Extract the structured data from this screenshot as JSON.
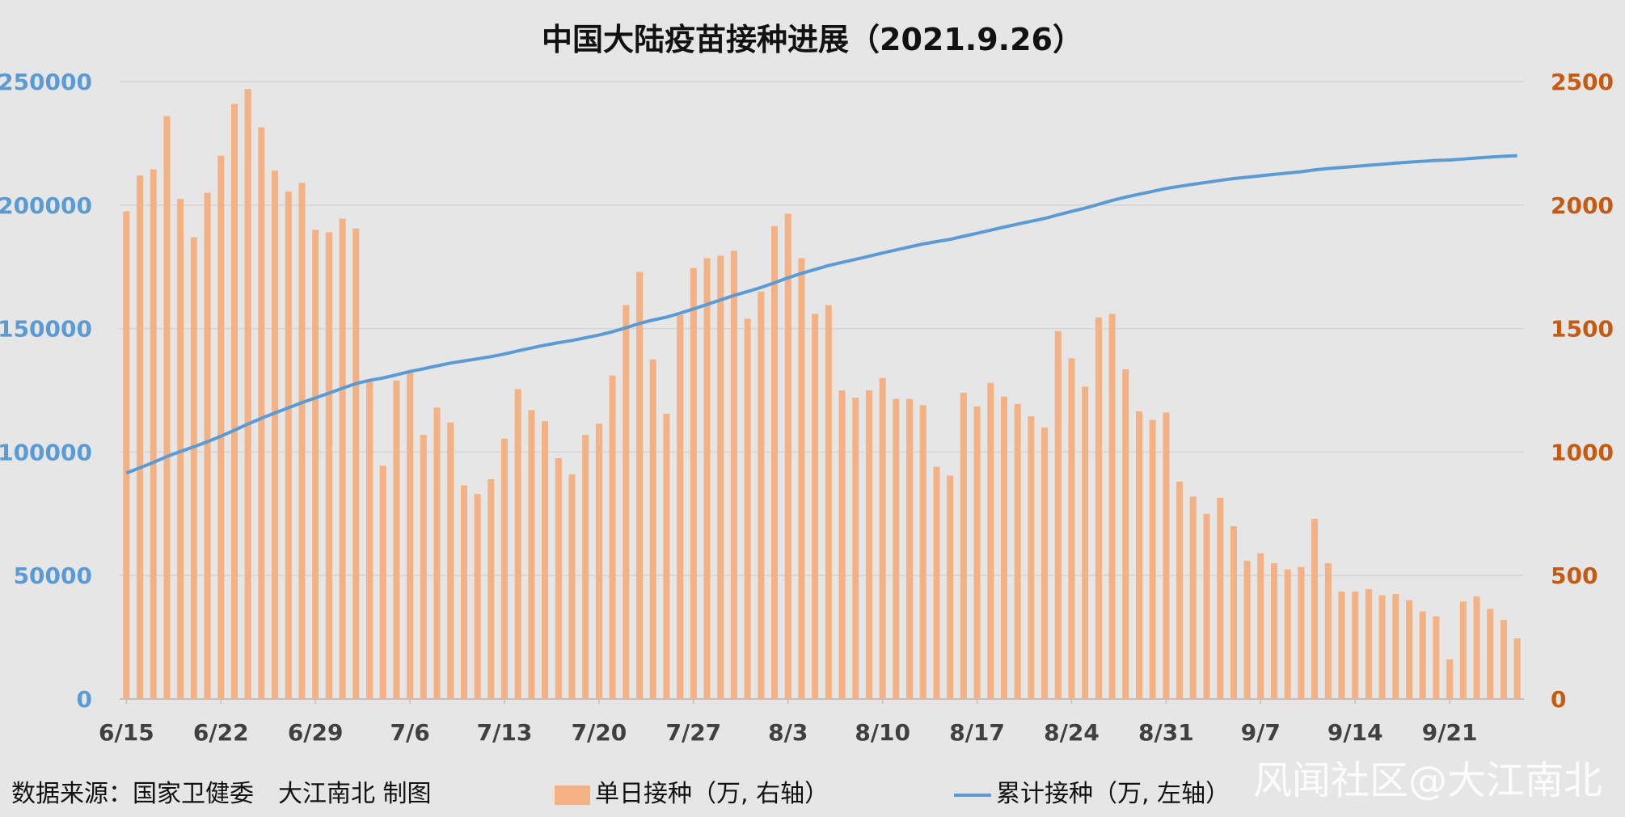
{
  "chart_data": {
    "type": "bar+line",
    "title": "中国大陆疫苗接种进展（2021.9.26）",
    "x_tick_labels": [
      "6/15",
      "6/22",
      "6/29",
      "7/6",
      "7/13",
      "7/20",
      "7/27",
      "8/3",
      "8/10",
      "8/17",
      "8/24",
      "8/31",
      "9/7",
      "9/14",
      "9/21"
    ],
    "x_dates_start": "6/15",
    "x_dates_end": "9/26",
    "y_left": {
      "range": [
        0,
        250000
      ],
      "ticks": [
        "0",
        "50000",
        "100000",
        "150000",
        "200000",
        "250000"
      ],
      "color": "#5b9bd5"
    },
    "y_right": {
      "range": [
        0,
        2500
      ],
      "ticks": [
        "0",
        "500",
        "1000",
        "1500",
        "2000",
        "2500"
      ],
      "color": "#c55a11"
    },
    "grid": true,
    "legend_position": "bottom",
    "series": [
      {
        "name": "单日接种（万, 右轴）",
        "type": "bar",
        "axis": "right",
        "color": "#f4b183",
        "values": [
          1975,
          2120,
          2145,
          2360,
          2025,
          1870,
          2050,
          2200,
          2410,
          2470,
          2315,
          2140,
          2055,
          2090,
          1900,
          1890,
          1945,
          1905,
          1285,
          945,
          1290,
          1325,
          1070,
          1180,
          1120,
          865,
          830,
          890,
          1055,
          1255,
          1170,
          1125,
          975,
          910,
          1070,
          1115,
          1310,
          1595,
          1730,
          1375,
          1155,
          1555,
          1745,
          1785,
          1795,
          1815,
          1540,
          1650,
          1915,
          1965,
          1785,
          1560,
          1595,
          1250,
          1220,
          1250,
          1300,
          1215,
          1215,
          1190,
          940,
          905,
          1240,
          1185,
          1280,
          1225,
          1195,
          1145,
          1100,
          1490,
          1380,
          1265,
          1545,
          1560,
          1335,
          1165,
          1130,
          1160,
          880,
          820,
          750,
          815,
          700,
          560,
          590,
          550,
          525,
          535,
          730,
          550,
          435,
          435,
          445,
          420,
          425,
          400,
          355,
          335,
          160,
          395,
          415,
          365,
          320,
          245
        ]
      },
      {
        "name": "累计接种（万, 左轴）",
        "type": "line",
        "axis": "left",
        "color": "#5b9bd5",
        "x_start": "6/15",
        "x_end": "9/26",
        "values": [
          91500,
          222000
        ]
      }
    ],
    "legend": [
      "单日接种（万, 右轴）",
      "累计接种（万, 左轴）"
    ]
  },
  "footer": {
    "source": "数据来源：国家卫健委　大江南北 制图",
    "watermark": "风闻社区@大江南北"
  }
}
